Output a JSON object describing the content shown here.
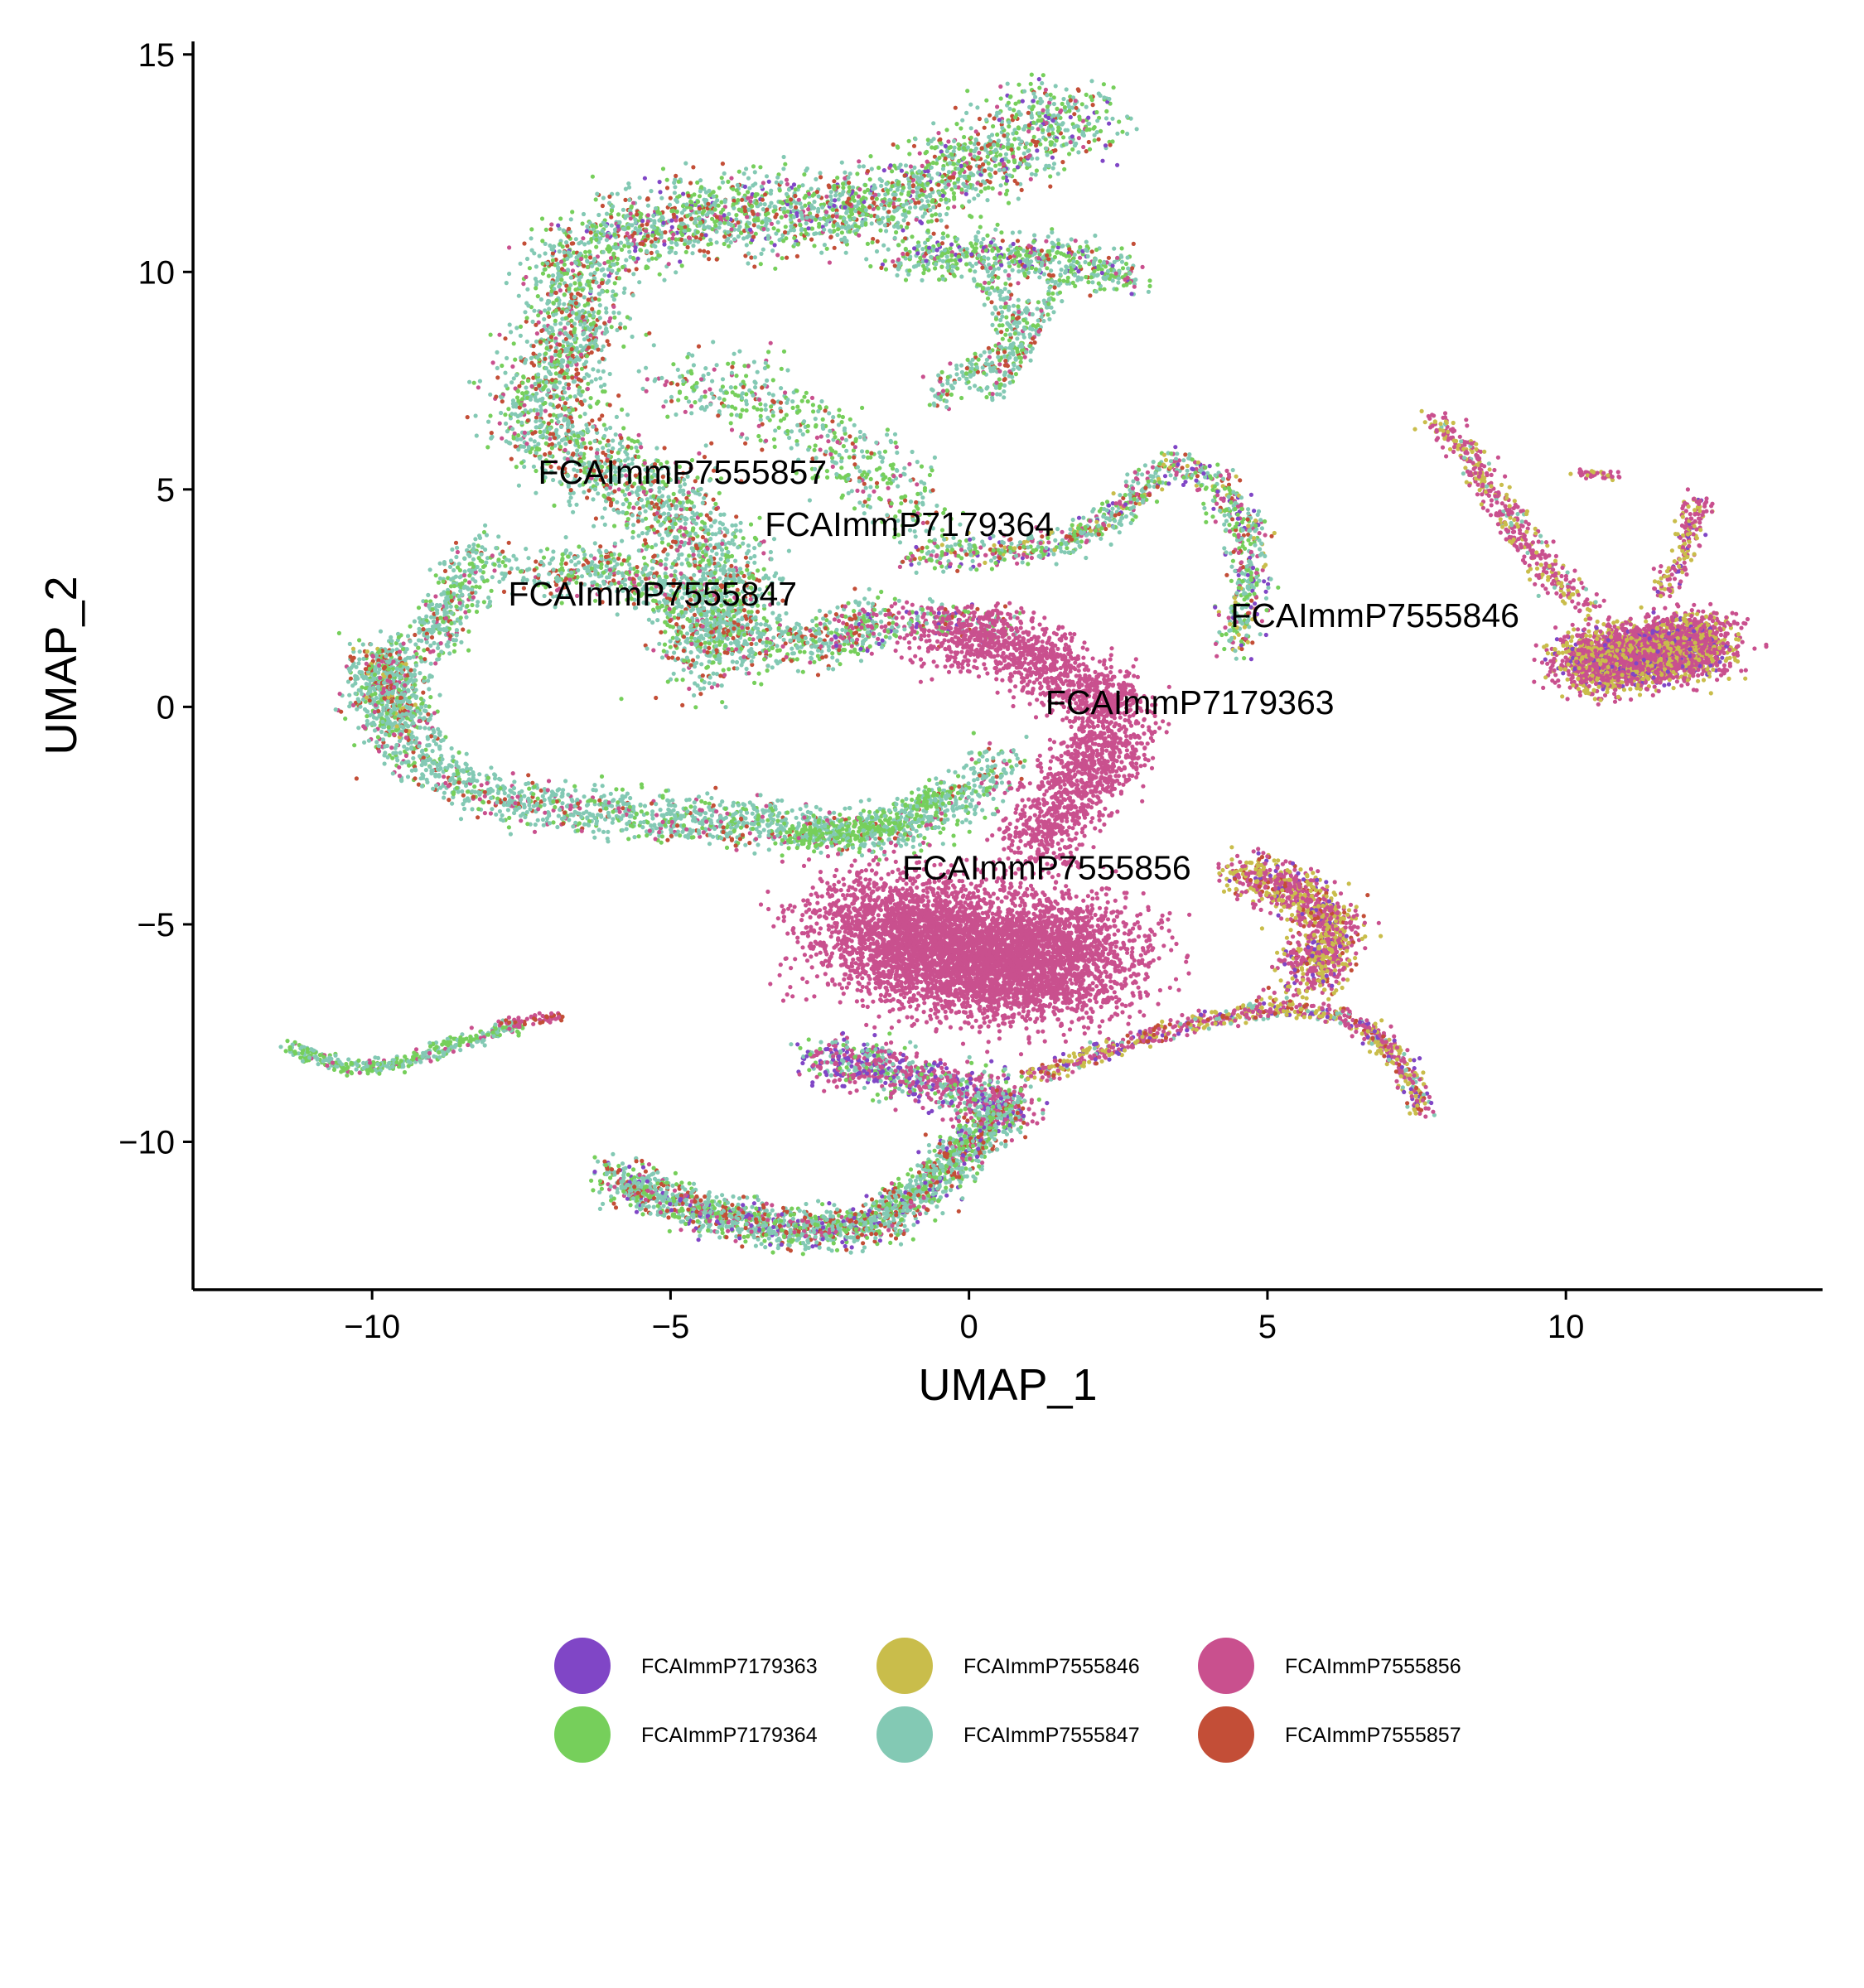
{
  "chart_data": {
    "type": "scatter",
    "xlabel": "UMAP_1",
    "ylabel": "UMAP_2",
    "xlim": [
      -13,
      14.3
    ],
    "ylim": [
      -13.4,
      15.3
    ],
    "x_ticks": [
      -10,
      -5,
      0,
      5,
      10
    ],
    "x_tick_labels": [
      "−10",
      "−5",
      "0",
      "5",
      "10"
    ],
    "y_ticks": [
      -10,
      -5,
      0,
      5,
      10,
      15
    ],
    "y_tick_labels": [
      "−10",
      "−5",
      "0",
      "5",
      "10",
      "15"
    ],
    "grid": false,
    "legend_position": "bottom",
    "series": [
      {
        "name": "FCAImmP7179363",
        "color": "#8046C6"
      },
      {
        "name": "FCAImmP7179364",
        "color": "#76CF5B"
      },
      {
        "name": "FCAImmP7555846",
        "color": "#C9BD4B"
      },
      {
        "name": "FCAImmP7555847",
        "color": "#83C9B4"
      },
      {
        "name": "FCAImmP7555856",
        "color": "#C9508E"
      },
      {
        "name": "FCAImmP7555857",
        "color": "#C34E37"
      }
    ],
    "cluster_labels": [
      {
        "text": "FCAImmP7555857",
        "x": -4.8,
        "y": 5.4
      },
      {
        "text": "FCAImmP7179364",
        "x": -1.0,
        "y": 4.2
      },
      {
        "text": "FCAImmP7555847",
        "x": -5.3,
        "y": 2.6
      },
      {
        "text": "FCAImmP7555846",
        "x": 6.8,
        "y": 2.1
      },
      {
        "text": "FCAImmP7179363",
        "x": 3.7,
        "y": 0.1
      },
      {
        "text": "FCAImmP7555856",
        "x": 1.3,
        "y": -3.7
      }
    ],
    "regions": [
      {
        "path": [
          [
            -6.6,
            10.5
          ],
          [
            -5.5,
            11.0
          ],
          [
            -4,
            11.4
          ],
          [
            -2.5,
            11.3
          ],
          [
            -1,
            11.8
          ],
          [
            0.5,
            12.8
          ],
          [
            1.2,
            13.5
          ],
          [
            2,
            13.6
          ]
        ],
        "width": 0.9,
        "n": 2200,
        "mix": [
          1,
          5,
          0,
          6,
          1,
          2
        ]
      },
      {
        "path": [
          [
            -1.2,
            10.3
          ],
          [
            0.5,
            10.4
          ],
          [
            2,
            10.2
          ],
          [
            2.8,
            9.9
          ]
        ],
        "width": 0.5,
        "n": 600,
        "mix": [
          1,
          5,
          0,
          5,
          1,
          1
        ]
      },
      {
        "path": [
          [
            0.3,
            9.8
          ],
          [
            0.8,
            9.0
          ],
          [
            0.6,
            8.2
          ],
          [
            -0.4,
            7.3
          ],
          [
            -0.5,
            7.0
          ]
        ],
        "width": 0.3,
        "n": 250,
        "mix": [
          0,
          3,
          0,
          5,
          1,
          1
        ]
      },
      {
        "path": [
          [
            1.5,
            9.8
          ],
          [
            1.0,
            8.5
          ],
          [
            0.6,
            7.5
          ],
          [
            0.3,
            7.1
          ]
        ],
        "width": 0.2,
        "n": 150,
        "mix": [
          0,
          2,
          0,
          5,
          1,
          1
        ]
      },
      {
        "path": [
          [
            -6.7,
            10.3
          ],
          [
            -6.5,
            9.0
          ],
          [
            -6.8,
            8.0
          ],
          [
            -7.3,
            7.0
          ],
          [
            -7.0,
            6.2
          ],
          [
            -6.0,
            5.4
          ],
          [
            -5.0,
            4.6
          ],
          [
            -4.5,
            3.7
          ],
          [
            -4.0,
            2.8
          ],
          [
            -4.3,
            1.6
          ],
          [
            -4.5,
            0.8
          ]
        ],
        "width": 0.9,
        "n": 2400,
        "mix": [
          0,
          3,
          0,
          6,
          1,
          2
        ]
      },
      {
        "path": [
          [
            -5.0,
            7.5
          ],
          [
            -3.8,
            7.4
          ],
          [
            -2.5,
            6.3
          ],
          [
            -1.5,
            5.2
          ],
          [
            -0.8,
            4.4
          ]
        ],
        "width": 0.8,
        "n": 500,
        "mix": [
          0,
          4,
          0,
          4,
          1,
          1
        ]
      },
      {
        "path": [
          [
            -7.4,
            3.0
          ],
          [
            -6.0,
            3.2
          ],
          [
            -4.8,
            2.4
          ],
          [
            -3.8,
            1.6
          ],
          [
            -2.6,
            1.4
          ],
          [
            -1.5,
            2.2
          ]
        ],
        "width": 0.6,
        "n": 900,
        "mix": [
          0,
          3,
          0,
          6,
          1,
          2
        ]
      },
      {
        "path": [
          [
            -8.2,
            3.6
          ],
          [
            -9.0,
            1.5
          ],
          [
            -9.8,
            0.8
          ],
          [
            -10.0,
            0.2
          ],
          [
            -9.6,
            -0.8
          ],
          [
            -8.8,
            -1.6
          ],
          [
            -7.6,
            -2.2
          ],
          [
            -5.5,
            -2.5
          ],
          [
            -4.5,
            -2.6
          ],
          [
            -3.0,
            -2.7
          ],
          [
            -1.8,
            -2.9
          ],
          [
            -0.8,
            -2.7
          ],
          [
            -0.2,
            -2.2
          ],
          [
            0.6,
            -1.2
          ]
        ],
        "width": 0.55,
        "n": 2300,
        "mix": [
          0,
          2,
          0,
          7,
          1,
          1
        ]
      },
      {
        "path": [
          [
            -3.0,
            -3.0
          ],
          [
            -1.5,
            -2.8
          ],
          [
            -0.5,
            -2.0
          ]
        ],
        "width": 0.35,
        "n": 350,
        "mix": [
          0,
          6,
          0,
          3,
          0,
          0
        ]
      },
      {
        "path": [
          [
            -10,
            1.2
          ],
          [
            -9.6,
            0.2
          ],
          [
            -9.2,
            -0.5
          ]
        ],
        "width": 0.5,
        "n": 400,
        "mix": [
          0,
          2,
          1,
          6,
          1,
          2
        ]
      },
      {
        "path": [
          [
            -1.0,
            3.5
          ],
          [
            0.5,
            3.6
          ],
          [
            1.8,
            3.8
          ],
          [
            2.8,
            4.8
          ],
          [
            3.4,
            5.6
          ],
          [
            4.2,
            5.2
          ],
          [
            4.6,
            4.2
          ],
          [
            4.7,
            3.1
          ],
          [
            4.6,
            2.2
          ],
          [
            4.4,
            1.4
          ]
        ],
        "width": 0.35,
        "n": 1000,
        "mix": [
          1,
          3,
          1,
          4,
          2,
          1
        ]
      },
      {
        "path": [
          [
            -2.2,
            1.4
          ],
          [
            -1.5,
            1.9
          ],
          [
            -0.2,
            2.0
          ],
          [
            0.6,
            1.8
          ]
        ],
        "width": 0.45,
        "n": 300,
        "mix": [
          1,
          2,
          0,
          2,
          3,
          1
        ]
      },
      {
        "path": [
          [
            -0.5,
            1.5
          ],
          [
            0.5,
            1.6
          ],
          [
            1.5,
            0.8
          ],
          [
            2.2,
            0.3
          ],
          [
            2.5,
            -0.5
          ],
          [
            2.0,
            -1.5
          ],
          [
            1.5,
            -2.5
          ],
          [
            1.0,
            -3.3
          ]
        ],
        "width": 0.75,
        "n": 2100,
        "mix": [
          0,
          0,
          0,
          0,
          1,
          0
        ]
      },
      {
        "path": [
          [
            -1.8,
            -5.0
          ],
          [
            -1.0,
            -5.3
          ],
          [
            0,
            -5.7
          ],
          [
            1.0,
            -6.0
          ],
          [
            2.0,
            -5.5
          ]
        ],
        "width": 1.4,
        "n": 5200,
        "mix": [
          0,
          0,
          0,
          0,
          1,
          0
        ]
      },
      {
        "path": [
          [
            -2.5,
            -8.0
          ],
          [
            -1.5,
            -8.3
          ],
          [
            -0.2,
            -8.8
          ],
          [
            0.8,
            -9.2
          ]
        ],
        "width": 0.55,
        "n": 900,
        "mix": [
          2,
          1,
          0,
          2,
          4,
          0
        ]
      },
      {
        "path": [
          [
            1.0,
            -8.5
          ],
          [
            2.5,
            -7.8
          ],
          [
            4.0,
            -7.2
          ],
          [
            5.2,
            -6.9
          ],
          [
            6.2,
            -7.1
          ],
          [
            6.9,
            -7.6
          ],
          [
            7.3,
            -8.3
          ],
          [
            7.6,
            -9.3
          ]
        ],
        "width": 0.22,
        "n": 800,
        "mix": [
          1,
          0,
          3,
          1,
          4,
          1
        ]
      },
      {
        "path": [
          [
            4.6,
            -3.8
          ],
          [
            5.4,
            -4.2
          ],
          [
            6.0,
            -4.8
          ],
          [
            6.0,
            -5.7
          ],
          [
            5.5,
            -6.3
          ]
        ],
        "width": 0.55,
        "n": 1100,
        "mix": [
          1,
          0,
          4,
          0,
          5,
          1
        ]
      },
      {
        "path": [
          [
            -11.4,
            -7.8
          ],
          [
            -10.5,
            -8.3
          ],
          [
            -9.5,
            -8.2
          ],
          [
            -8.5,
            -7.7
          ],
          [
            -7.5,
            -7.3
          ]
        ],
        "width": 0.18,
        "n": 400,
        "mix": [
          0,
          5,
          0,
          4,
          1,
          0
        ]
      },
      {
        "path": [
          [
            -6.8,
            -7.1
          ],
          [
            -7.4,
            -7.2
          ],
          [
            -7.8,
            -7.3
          ]
        ],
        "width": 0.12,
        "n": 60,
        "mix": [
          0,
          0,
          0,
          0,
          4,
          2
        ]
      },
      {
        "path": [
          [
            -6.0,
            -10.8
          ],
          [
            -4.5,
            -11.6
          ],
          [
            -3.0,
            -12.0
          ],
          [
            -1.6,
            -11.9
          ],
          [
            -0.5,
            -10.8
          ],
          [
            0.2,
            -9.8
          ],
          [
            0.7,
            -9.2
          ]
        ],
        "width": 0.45,
        "n": 2100,
        "mix": [
          1,
          3,
          0,
          6,
          1,
          2
        ]
      },
      {
        "path": [
          [
            7.8,
            6.6
          ],
          [
            8.4,
            5.9
          ],
          [
            8.7,
            5.0
          ],
          [
            9.3,
            3.9
          ],
          [
            9.8,
            2.9
          ],
          [
            10.4,
            2.3
          ]
        ],
        "width": 0.3,
        "n": 450,
        "mix": [
          0,
          0,
          3,
          1,
          6,
          0
        ]
      },
      {
        "path": [
          [
            10.3,
            1.0
          ],
          [
            11.3,
            1.2
          ],
          [
            12.4,
            1.5
          ]
        ],
        "width": 0.7,
        "n": 3000,
        "mix": [
          1,
          0,
          4,
          0,
          7,
          0
        ]
      },
      {
        "path": [
          [
            11.6,
            2.6
          ],
          [
            12.0,
            3.5
          ],
          [
            12.2,
            4.8
          ]
        ],
        "width": 0.25,
        "n": 180,
        "mix": [
          1,
          0,
          3,
          0,
          5,
          0
        ]
      },
      {
        "path": [
          [
            10.2,
            5.4
          ],
          [
            10.9,
            5.3
          ]
        ],
        "width": 0.12,
        "n": 40,
        "mix": [
          0,
          0,
          1,
          0,
          3,
          0
        ]
      }
    ]
  }
}
